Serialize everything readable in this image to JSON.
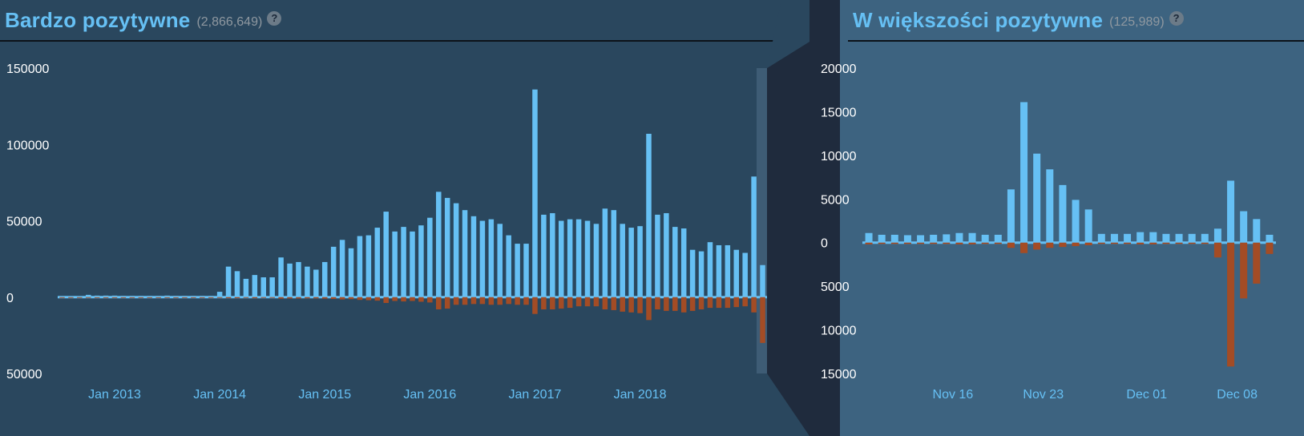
{
  "left": {
    "summary": "Bardzo pozytywne",
    "count": "(2,866,649)",
    "help": "?"
  },
  "right": {
    "summary": "W większości pozytywne",
    "count": "(125,989)",
    "help": "?"
  },
  "colors": {
    "positive": "#66c0f4",
    "negative": "#a34c25"
  },
  "chart_data": [
    {
      "type": "bar",
      "subject": "monthly reviews",
      "ylim": [
        -50000,
        150000
      ],
      "yticks": [
        {
          "value": 150000,
          "label": "150000"
        },
        {
          "value": 100000,
          "label": "100000"
        },
        {
          "value": 50000,
          "label": "50000"
        },
        {
          "value": 0,
          "label": "0"
        },
        {
          "value": -50000,
          "label": "50000"
        }
      ],
      "xticks": [
        {
          "index": 6,
          "label": "Jan 2013"
        },
        {
          "index": 18,
          "label": "Jan 2014"
        },
        {
          "index": 30,
          "label": "Jan 2015"
        },
        {
          "index": 42,
          "label": "Jan 2016"
        },
        {
          "index": 54,
          "label": "Jan 2017"
        },
        {
          "index": 66,
          "label": "Jan 2018"
        }
      ],
      "series": [
        {
          "name": "positive",
          "values": [
            500,
            500,
            500,
            1500,
            1000,
            1000,
            1000,
            800,
            800,
            800,
            800,
            800,
            1000,
            800,
            800,
            800,
            800,
            800,
            3500,
            20000,
            17000,
            12000,
            14500,
            13000,
            13000,
            26000,
            22000,
            23000,
            20000,
            18000,
            23000,
            33000,
            37500,
            32000,
            40000,
            40500,
            45500,
            56000,
            43000,
            46000,
            43000,
            47000,
            52000,
            69000,
            65000,
            61500,
            57000,
            53000,
            50000,
            51000,
            48000,
            40500,
            35000,
            35000,
            136000,
            54000,
            55000,
            50000,
            51000,
            51000,
            50000,
            48000,
            58000,
            57000,
            48000,
            45500,
            46500,
            107000,
            54000,
            55000,
            46000,
            45000,
            31000,
            30000,
            36000,
            34000,
            34000,
            31000,
            29000,
            79000,
            21000
          ]
        },
        {
          "name": "negative",
          "values": [
            -200,
            -200,
            -200,
            -300,
            -200,
            -200,
            -200,
            -200,
            -200,
            -200,
            -200,
            -200,
            -200,
            -200,
            -200,
            -200,
            -200,
            -200,
            -300,
            -700,
            -700,
            -500,
            -700,
            -500,
            -500,
            -1000,
            -900,
            -900,
            -800,
            -800,
            -1000,
            -1200,
            -1500,
            -1300,
            -1800,
            -2000,
            -2300,
            -3800,
            -2500,
            -2800,
            -2500,
            -3000,
            -3500,
            -8000,
            -7500,
            -5000,
            -5000,
            -4500,
            -4500,
            -5000,
            -5000,
            -4500,
            -5000,
            -5000,
            -11000,
            -8000,
            -8000,
            -7500,
            -7000,
            -6000,
            -6000,
            -6000,
            -8000,
            -8500,
            -9500,
            -10000,
            -10500,
            -15000,
            -8000,
            -9000,
            -9000,
            -10000,
            -9000,
            -8000,
            -7000,
            -7000,
            -7000,
            -6500,
            -6000,
            -10000,
            -30000
          ]
        }
      ]
    },
    {
      "type": "bar",
      "subject": "daily reviews",
      "ylim": [
        -15000,
        20000
      ],
      "yticks": [
        {
          "value": 20000,
          "label": "20000"
        },
        {
          "value": 15000,
          "label": "15000"
        },
        {
          "value": 10000,
          "label": "10000"
        },
        {
          "value": 5000,
          "label": "5000"
        },
        {
          "value": 0,
          "label": "0"
        },
        {
          "value": -5000,
          "label": "5000"
        },
        {
          "value": -10000,
          "label": "10000"
        },
        {
          "value": -15000,
          "label": "15000"
        }
      ],
      "xticks": [
        {
          "index": 6.5,
          "label": "Nov 16"
        },
        {
          "index": 13.5,
          "label": "Nov 23"
        },
        {
          "index": 21.5,
          "label": "Dec 01"
        },
        {
          "index": 28.5,
          "label": "Dec 08"
        }
      ],
      "series": [
        {
          "name": "positive",
          "values": [
            1100,
            900,
            900,
            850,
            850,
            900,
            950,
            1100,
            1100,
            900,
            900,
            6100,
            16100,
            10200,
            8400,
            6600,
            4900,
            3800,
            1000,
            1000,
            1000,
            1200,
            1200,
            1000,
            1000,
            1000,
            1000,
            1600,
            7100,
            3600,
            2700,
            900
          ]
        },
        {
          "name": "negative",
          "values": [
            -200,
            -150,
            -150,
            -150,
            -150,
            -150,
            -150,
            -200,
            -200,
            -150,
            -150,
            -600,
            -1200,
            -800,
            -600,
            -500,
            -400,
            -300,
            -150,
            -150,
            -150,
            -200,
            -200,
            -150,
            -150,
            -150,
            -150,
            -1700,
            -14200,
            -6400,
            -4700,
            -1300
          ]
        }
      ]
    }
  ]
}
